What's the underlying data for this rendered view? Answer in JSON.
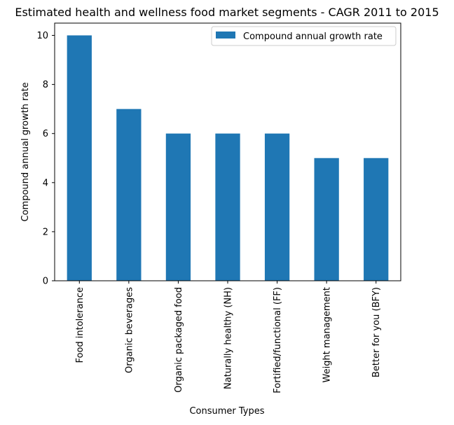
{
  "chart_data": {
    "type": "bar",
    "title": "Estimated health and wellness food market segments - CAGR 2011 to 2015",
    "xlabel": "Consumer Types",
    "ylabel": "Compound annual growth rate",
    "categories": [
      "Food intolerance",
      "Organic beverages",
      "Organic packaged food",
      "Naturally healthy (NH)",
      "Fortified/functional (FF)",
      "Weight management",
      "Better for you (BFY)"
    ],
    "series": [
      {
        "name": "Compound annual growth rate",
        "values": [
          10,
          7,
          6,
          6,
          6,
          5,
          5
        ],
        "color": "#1f77b4"
      }
    ],
    "ylim": [
      0,
      10.5
    ],
    "yticks": [
      "0",
      "2",
      "4",
      "6",
      "8",
      "10"
    ],
    "legend_position": "top-right",
    "grid": false
  }
}
